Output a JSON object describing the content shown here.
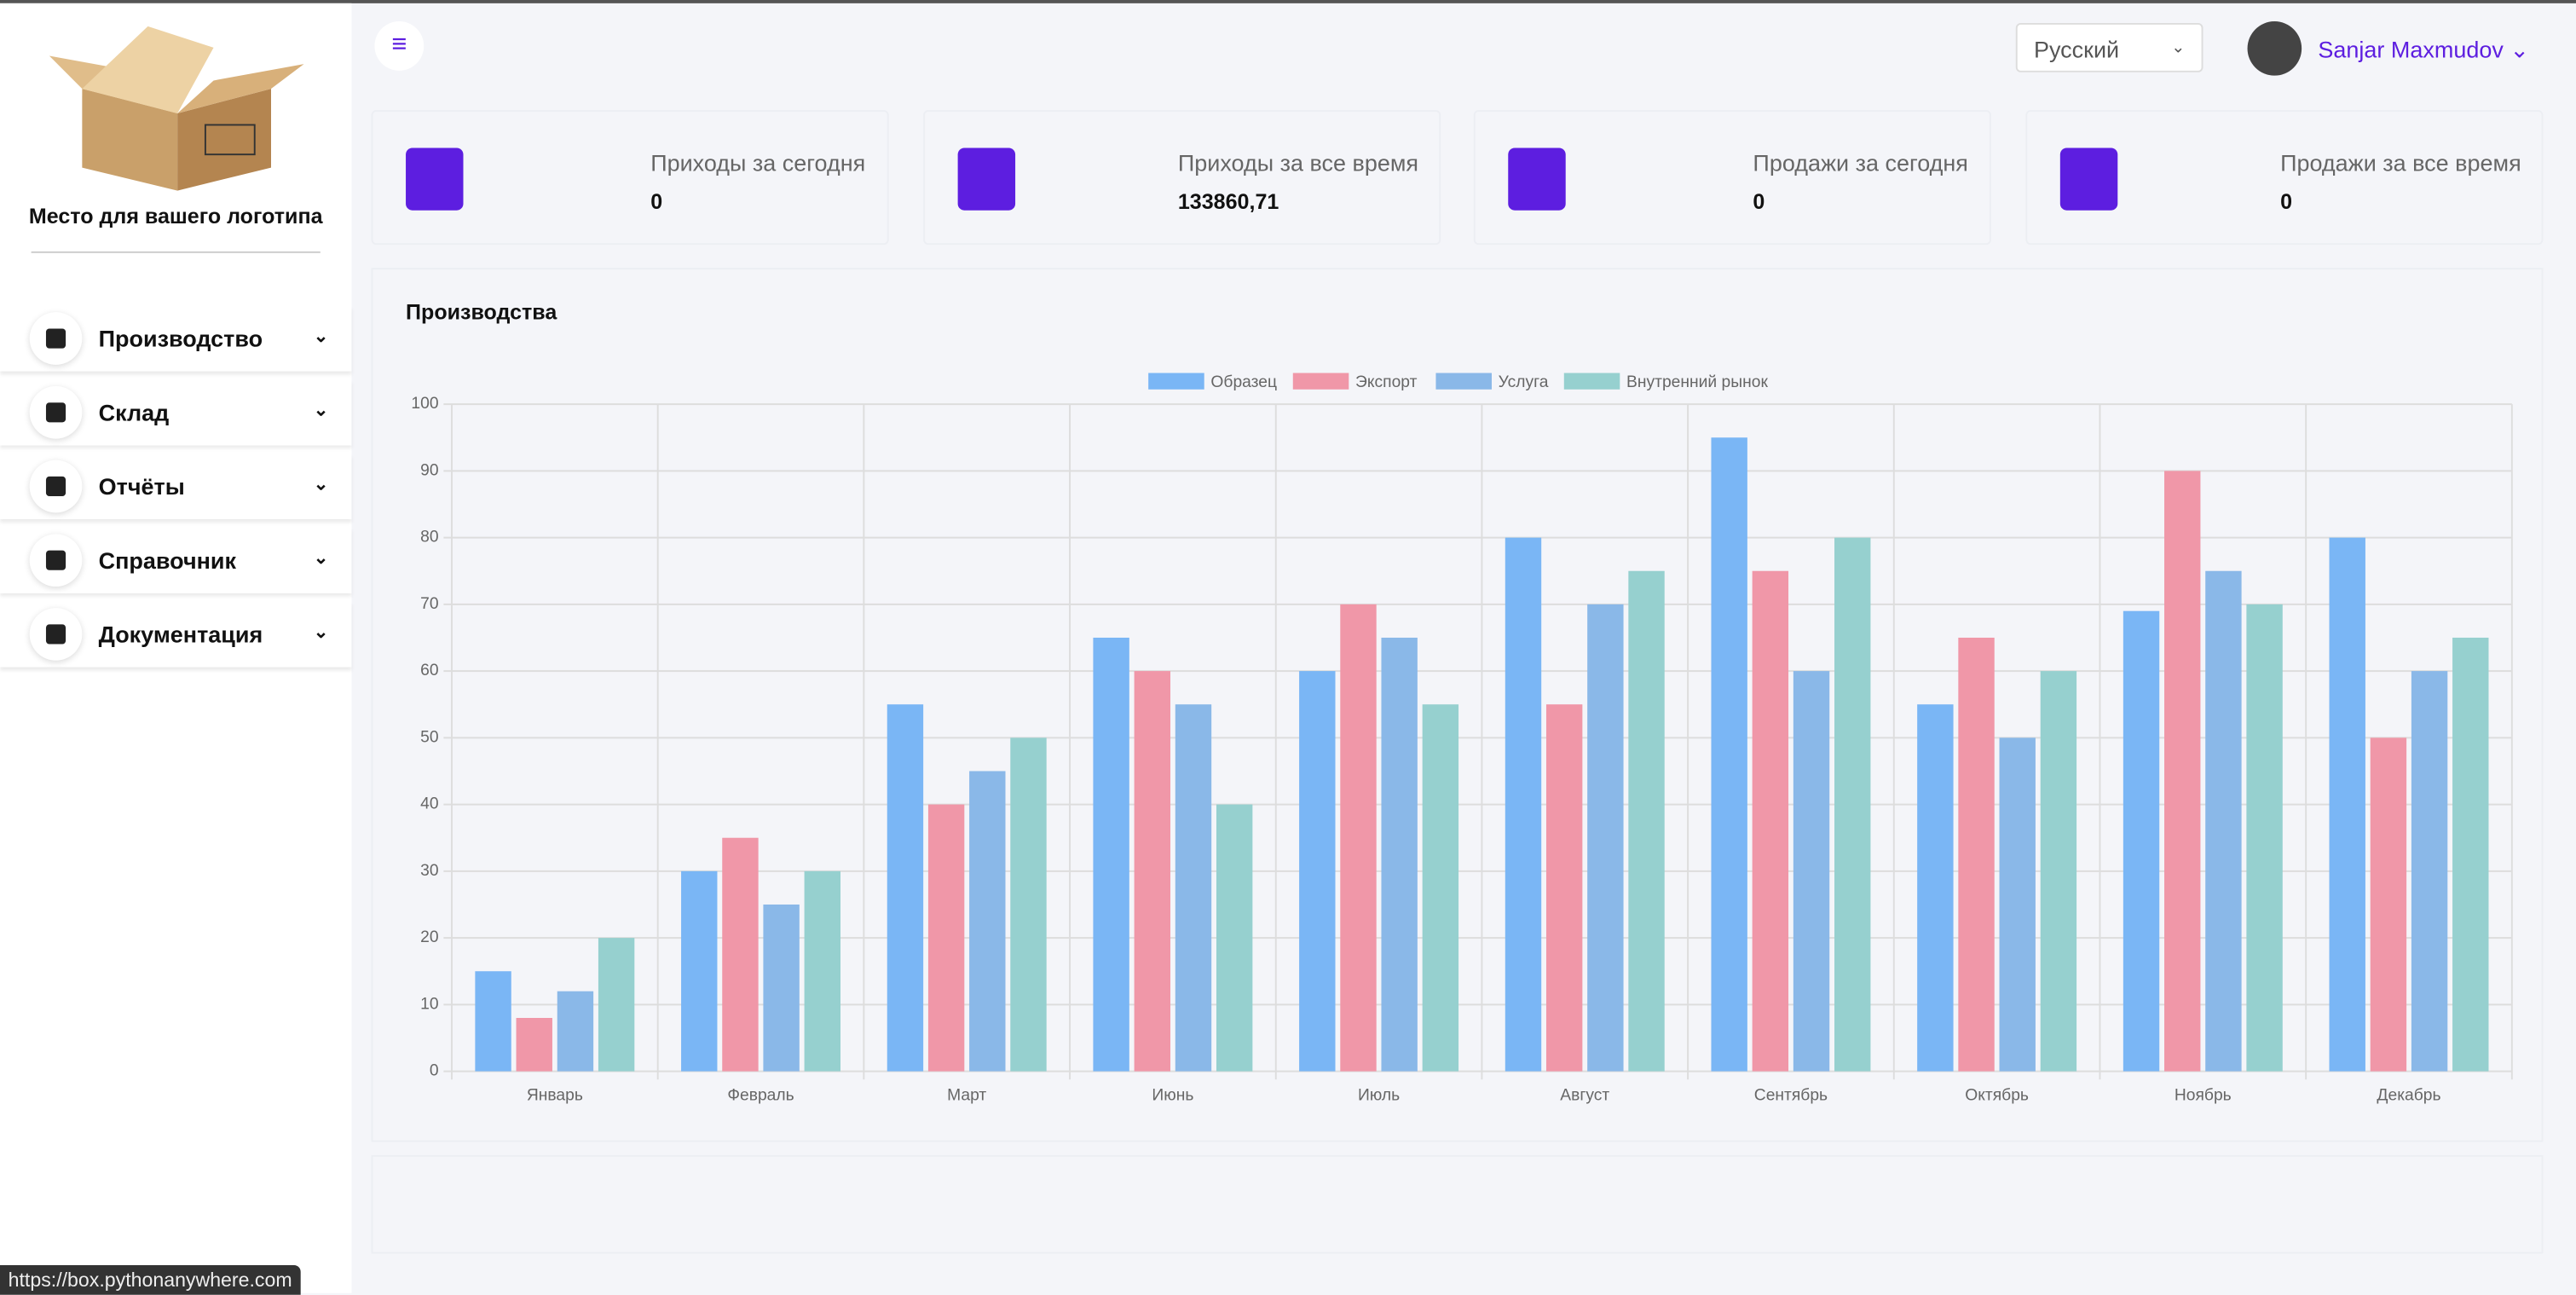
{
  "sidebar": {
    "logo_text": "Место для вашего логотипа",
    "menu": [
      "Производство",
      "Склад",
      "Отчёты",
      "Справочник",
      "Документация"
    ]
  },
  "header": {
    "language": "Русский",
    "user": "Sanjar Maxmudov"
  },
  "cards": [
    {
      "label": "Приходы за сегодня",
      "value": "0"
    },
    {
      "label": "Приходы за все время",
      "value": "133860,71"
    },
    {
      "label": "Продажи за сегодня",
      "value": "0"
    },
    {
      "label": "Продажи за все время",
      "value": "0"
    }
  ],
  "chart": {
    "type": "bar",
    "title": "Производства",
    "categories": [
      "Январь",
      "Февраль",
      "Март",
      "Июнь",
      "Июль",
      "Август",
      "Сентябрь",
      "Октябрь",
      "Ноябрь",
      "Декабрь"
    ],
    "series": [
      {
        "name": "Образец",
        "color": "#7ab6f5",
        "values": [
          15,
          30,
          55,
          65,
          60,
          80,
          95,
          55,
          69,
          80
        ]
      },
      {
        "name": "Экспорт",
        "color": "#f097a8",
        "values": [
          8,
          35,
          40,
          60,
          70,
          55,
          75,
          65,
          90,
          50
        ]
      },
      {
        "name": "Услуга",
        "color": "#8ab8e8",
        "values": [
          12,
          25,
          45,
          55,
          65,
          70,
          60,
          50,
          75,
          60
        ]
      },
      {
        "name": "Внутренний рынок",
        "color": "#96d0cf",
        "values": [
          20,
          30,
          50,
          40,
          55,
          75,
          80,
          60,
          70,
          65
        ]
      }
    ],
    "ylim": [
      0,
      100
    ],
    "yticks": [
      0,
      10,
      20,
      30,
      40,
      50,
      60,
      70,
      80,
      90,
      100
    ],
    "grid": true,
    "legend": "top"
  },
  "status_url": "https://box.pythonanywhere.com"
}
